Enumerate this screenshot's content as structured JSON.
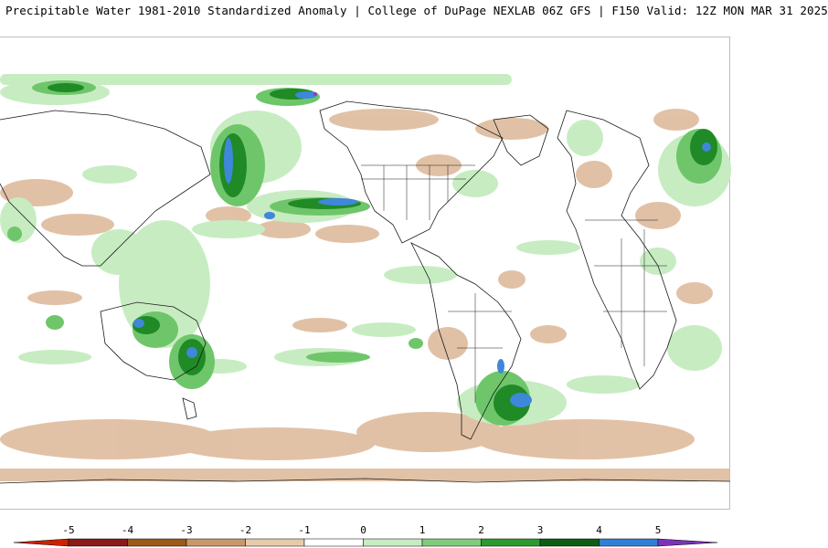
{
  "header": {
    "title": "Precipitable Water 1981-2010 Standardized Anomaly | College of DuPage NEXLAB  06Z GFS | F150 Valid: 12Z MON MAR 31 2025"
  },
  "legend": {
    "ticks": [
      "-5",
      "-4",
      "-3",
      "-2",
      "-1",
      "0",
      "1",
      "2",
      "3",
      "4",
      "5"
    ],
    "colors": [
      "#cc2200",
      "#8b1a1a",
      "#9a5a1a",
      "#c9986a",
      "#e6cbaa",
      "#ffffff",
      "#c7ecc2",
      "#7fcc7a",
      "#2e9a2e",
      "#0d5e14",
      "#2e7fd6",
      "#7a33b8"
    ]
  },
  "map": {
    "negative_color": "#dcb797",
    "positive_light": "#c7ecc2",
    "positive_mid": "#6fc66a",
    "positive_dark": "#1f8a26",
    "positive_blue": "#3f87d9",
    "positive_purple": "#8a3fc0",
    "coastline_color": "#1a1a1a"
  }
}
